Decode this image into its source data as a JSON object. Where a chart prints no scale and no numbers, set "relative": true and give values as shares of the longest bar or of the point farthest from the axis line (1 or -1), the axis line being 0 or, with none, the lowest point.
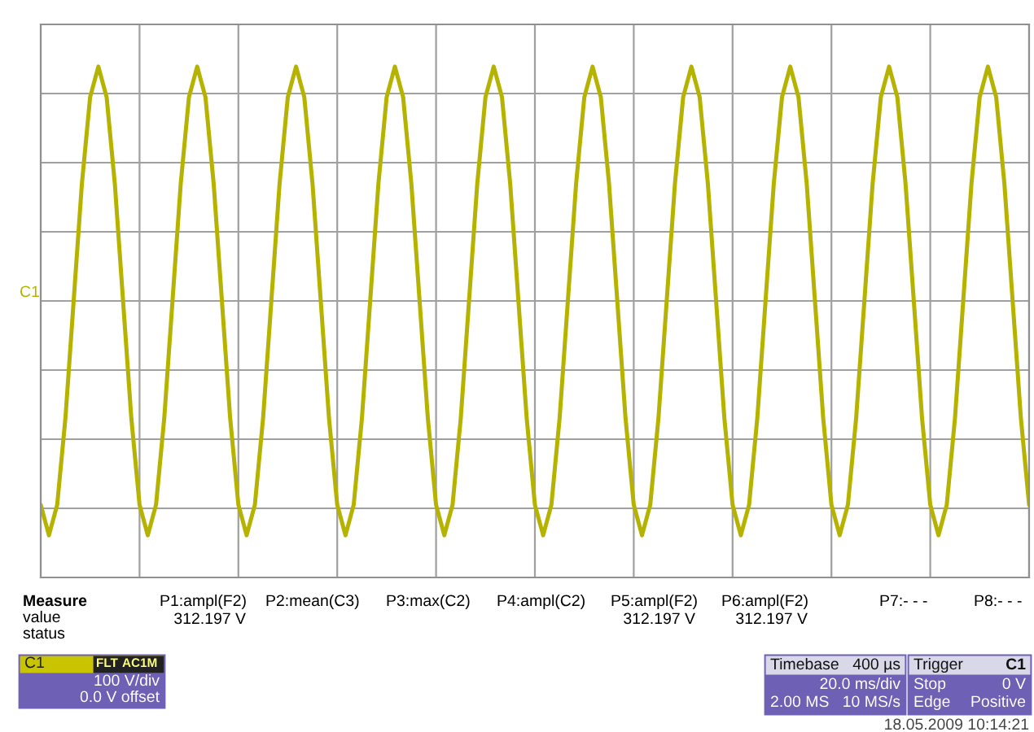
{
  "chart_data": {
    "type": "line",
    "relative": true,
    "grid": true,
    "legend": false,
    "marker": "none",
    "line_style": "solid",
    "categories": [
      null,
      null,
      null,
      null,
      null,
      null,
      null,
      null,
      null,
      null,
      null,
      null,
      null,
      null,
      null,
      null,
      null,
      null,
      null,
      null,
      null,
      null,
      null,
      null,
      null,
      null,
      null,
      null,
      null,
      null,
      null,
      null,
      null,
      null,
      null,
      null,
      null,
      null,
      null,
      null,
      null,
      null,
      null,
      null,
      null,
      null,
      null,
      null,
      null,
      null,
      null,
      null,
      null,
      null,
      null,
      null,
      null,
      null,
      null,
      null,
      null,
      null,
      null,
      null,
      null,
      null,
      null,
      null,
      null,
      null,
      null,
      null,
      null,
      null,
      null,
      null,
      null,
      null,
      null,
      null,
      null,
      null,
      null,
      null,
      null,
      null,
      null,
      null,
      null,
      null,
      null,
      null,
      null,
      null,
      null,
      null,
      null,
      null,
      null,
      null,
      null,
      null,
      null,
      null,
      null,
      null,
      null,
      null,
      null,
      null,
      null,
      null,
      null,
      null,
      null,
      null,
      null,
      null,
      null,
      null,
      null
    ],
    "series": [
      {
        "color": "#b5b300",
        "values": [
          -0.87,
          -1,
          -0.87,
          -0.5,
          0,
          0.5,
          0.87,
          1,
          0.87,
          0.5,
          0,
          -0.5,
          -0.87,
          -1,
          -0.87,
          -0.5,
          0,
          0.5,
          0.87,
          1,
          0.87,
          0.5,
          0,
          -0.5,
          -0.87,
          -1,
          -0.87,
          -0.5,
          0,
          0.5,
          0.87,
          1,
          0.87,
          0.5,
          0,
          -0.5,
          -0.87,
          -1,
          -0.87,
          -0.5,
          0,
          0.5,
          0.87,
          1,
          0.87,
          0.5,
          0,
          -0.5,
          -0.87,
          -1,
          -0.87,
          -0.5,
          0,
          0.5,
          0.87,
          1,
          0.87,
          0.5,
          0,
          -0.5,
          -0.87,
          -1,
          -0.87,
          -0.5,
          0,
          0.5,
          0.87,
          1,
          0.87,
          0.5,
          0,
          -0.5,
          -0.87,
          -1,
          -0.87,
          -0.5,
          0,
          0.5,
          0.87,
          1,
          0.87,
          0.5,
          0,
          -0.5,
          -0.87,
          -1,
          -0.87,
          -0.5,
          0,
          0.5,
          0.87,
          1,
          0.87,
          0.5,
          0,
          -0.5,
          -0.87,
          -1,
          -0.87,
          -0.5,
          0,
          0.5,
          0.87,
          1,
          0.87,
          0.5,
          0,
          -0.5,
          -0.87,
          -1,
          -0.87,
          -0.5,
          0,
          0.5,
          0.87,
          1,
          0.87,
          0.5,
          0,
          -0.5,
          -0.87
        ]
      }
    ],
    "annotations": [
      "C1",
      "Measure",
      "value",
      "status",
      "P1:ampl(F2)",
      "P2:mean(C3)",
      "P3:max(C2)",
      "P4:ampl(C2)",
      "P5:ampl(F2)",
      "P6:ampl(F2)",
      "P7:- - -",
      "P8:- - -",
      "312.197 V",
      "312.197 V",
      "312.197 V",
      "C1",
      "FLT",
      "AC1M",
      "100 V/div",
      "0.0 V offset",
      "Timebase",
      "400 µs",
      "20.0 ms/div",
      "2.00 MS",
      "10 MS/s",
      "Trigger",
      "C1",
      "Stop",
      "0 V",
      "Edge",
      "Positive",
      "18.05.2009 10:14:21"
    ]
  }
}
